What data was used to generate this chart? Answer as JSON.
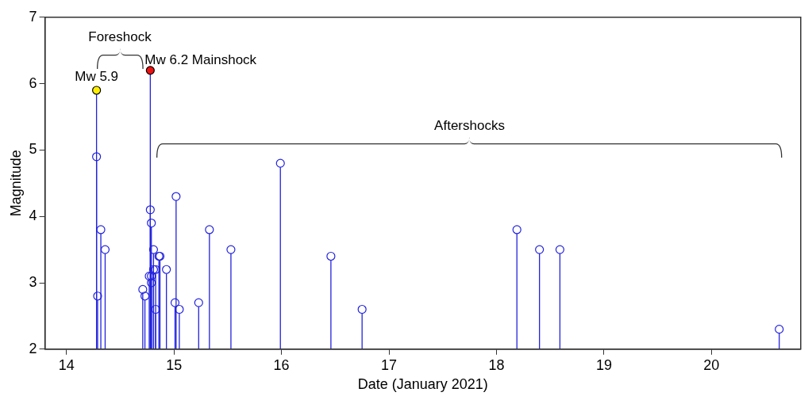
{
  "chart_data": {
    "type": "lollipop",
    "xlabel": "Date (January 2021)",
    "ylabel": "Magnitude",
    "xlim": [
      13.8,
      20.83
    ],
    "xticks": [
      14,
      15,
      16,
      17,
      18,
      19,
      20
    ],
    "ylim": [
      2,
      7
    ],
    "yticks": [
      2,
      3,
      4,
      5,
      6,
      7
    ],
    "grid": false,
    "legend": false,
    "marker": "circle",
    "annotations": [
      "Foreshock",
      {
        "text": "Mw 6.2 Mainshock",
        "x": 14.78,
        "y": 6.2
      },
      {
        "text": "Mw 5.9",
        "x": 14.28,
        "y": 5.9
      },
      "Aftershocks"
    ],
    "series": [
      {
        "color": "#2222dd",
        "x": [
          14.28,
          14.28,
          14.29,
          14.32,
          14.36,
          14.71,
          14.73,
          14.78,
          14.78,
          14.79,
          14.81,
          14.86,
          14.87,
          14.81,
          14.83,
          14.93,
          14.77,
          14.79,
          14.79,
          14.83,
          15.01,
          15.02,
          15.05,
          15.23,
          15.33,
          15.53,
          15.99,
          16.46,
          16.75,
          18.19,
          18.4,
          18.59,
          20.63
        ],
        "values": [
          5.9,
          4.9,
          2.8,
          3.8,
          3.5,
          2.9,
          2.8,
          6.2,
          4.1,
          3.9,
          3.5,
          3.4,
          3.4,
          3.2,
          3.2,
          3.2,
          3.1,
          3.1,
          3.0,
          2.6,
          2.7,
          4.3,
          2.6,
          2.7,
          3.8,
          3.5,
          4.8,
          3.4,
          2.6,
          3.8,
          3.5,
          3.5,
          2.3
        ],
        "colors": [
          "#ffee00",
          "#2222dd",
          "#2222dd",
          "#2222dd",
          "#2222dd",
          "#2222dd",
          "#2222dd",
          "#ee1111",
          "#2222dd",
          "#2222dd",
          "#2222dd",
          "#2222dd",
          "#2222dd",
          "#2222dd",
          "#2222dd",
          "#2222dd",
          "#2222dd",
          "#2222dd",
          "#2222dd",
          "#2222dd",
          "#2222dd",
          "#2222dd",
          "#2222dd",
          "#2222dd",
          "#2222dd",
          "#2222dd",
          "#2222dd",
          "#2222dd",
          "#2222dd",
          "#2222dd",
          "#2222dd",
          "#2222dd",
          "#2222dd"
        ]
      }
    ]
  }
}
